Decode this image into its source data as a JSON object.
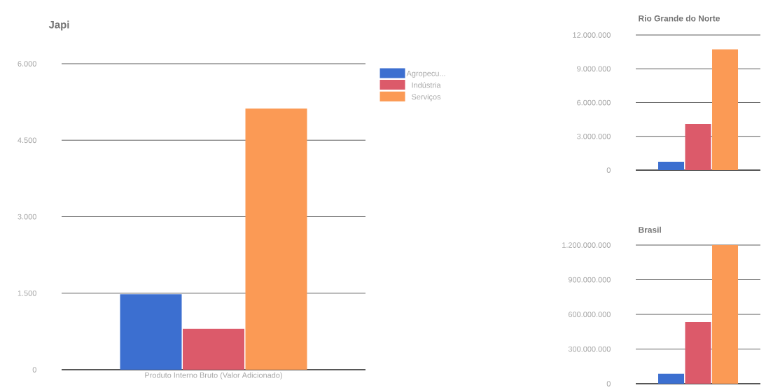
{
  "chart_data": [
    {
      "type": "bar",
      "title": "Japi",
      "categories": [
        "Produto Interno Bruto (Valor Adicionado)"
      ],
      "series": [
        {
          "name": "Agropecu...",
          "color": "#3c6fd0",
          "values": [
            1480
          ]
        },
        {
          "name": "Indústria",
          "color": "#dc5a6a",
          "values": [
            800
          ]
        },
        {
          "name": "Serviços",
          "color": "#fb9a55",
          "values": [
            5120
          ]
        }
      ],
      "ylim": [
        0,
        6000
      ],
      "yticks": [
        0,
        {
          "value": 1500,
          "label": "1.500"
        },
        {
          "value": 3000,
          "label": "3.000"
        },
        {
          "value": 4500,
          "label": "4.500"
        },
        {
          "value": 6000,
          "label": "6.000"
        }
      ],
      "grid": "y",
      "legend": "top right"
    },
    {
      "type": "bar",
      "title": "Rio Grande do Norte",
      "categories": [
        null
      ],
      "series": [
        {
          "color": "#3c6fd0",
          "values": [
            740000
          ]
        },
        {
          "color": "#dc5a6a",
          "values": [
            4100000
          ]
        },
        {
          "color": "#fb9a55",
          "values": [
            10720000
          ]
        }
      ],
      "ylim": [
        0,
        12000000
      ],
      "yticks": [
        0,
        {
          "value": 3000000,
          "label": "3.000.000"
        },
        {
          "value": 6000000,
          "label": "6.000.000"
        },
        {
          "value": 9000000,
          "label": "9.000.000"
        },
        {
          "value": 12000000,
          "label": "12.000.000"
        }
      ],
      "grid": "y"
    },
    {
      "type": "bar",
      "title": "Brasil",
      "categories": [
        null
      ],
      "series": [
        {
          "color": "#3c6fd0",
          "values": [
            87000000
          ]
        },
        {
          "color": "#dc5a6a",
          "values": [
            533000000
          ]
        },
        {
          "color": "#fb9a55",
          "values": [
            1200000000
          ]
        }
      ],
      "ylim": [
        0,
        1200000000
      ],
      "yticks": [
        0,
        {
          "value": 300000000,
          "label": "300.000.000"
        },
        {
          "value": 600000000,
          "label": "600.000.000"
        },
        {
          "value": 900000000,
          "label": "900.000.000"
        },
        {
          "value": 1200000000,
          "label": "1.200.000.000"
        }
      ],
      "grid": "y"
    }
  ]
}
